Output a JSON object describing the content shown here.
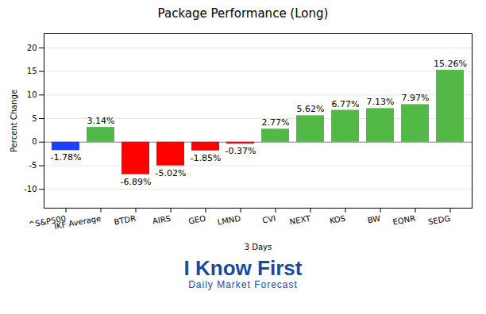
{
  "chart_data": {
    "type": "bar",
    "title": "Package Performance (Long)",
    "x_label": "3 Days",
    "y_label": "Percent Change",
    "categories": [
      "^S&P500",
      "IKF Average",
      "BTDR",
      "AIRS",
      "GEO",
      "LMND",
      "CVI",
      "NEXT",
      "KOS",
      "BW",
      "EQNR",
      "SEDG"
    ],
    "values": [
      -1.78,
      3.14,
      -6.89,
      -5.02,
      -1.85,
      -0.37,
      2.77,
      5.62,
      6.77,
      7.13,
      7.97,
      15.26
    ],
    "value_labels": [
      "-1.78%",
      "3.14%",
      "-6.89%",
      "-5.02%",
      "-1.85%",
      "-0.37%",
      "2.77%",
      "5.62%",
      "6.77%",
      "7.13%",
      "7.97%",
      "15.26%"
    ],
    "colors": [
      "#1f3fff",
      "#52b947",
      "#ff0000",
      "#ff0000",
      "#ff0000",
      "#ff0000",
      "#52b947",
      "#52b947",
      "#52b947",
      "#52b947",
      "#52b947",
      "#52b947"
    ],
    "ylim": [
      -14,
      23
    ],
    "yticks": [
      -10,
      -5,
      0,
      5,
      10,
      15,
      20
    ],
    "grid": true,
    "data_labels": true,
    "annotations": [
      "I Know First",
      "Daily Market Forecast"
    ]
  }
}
